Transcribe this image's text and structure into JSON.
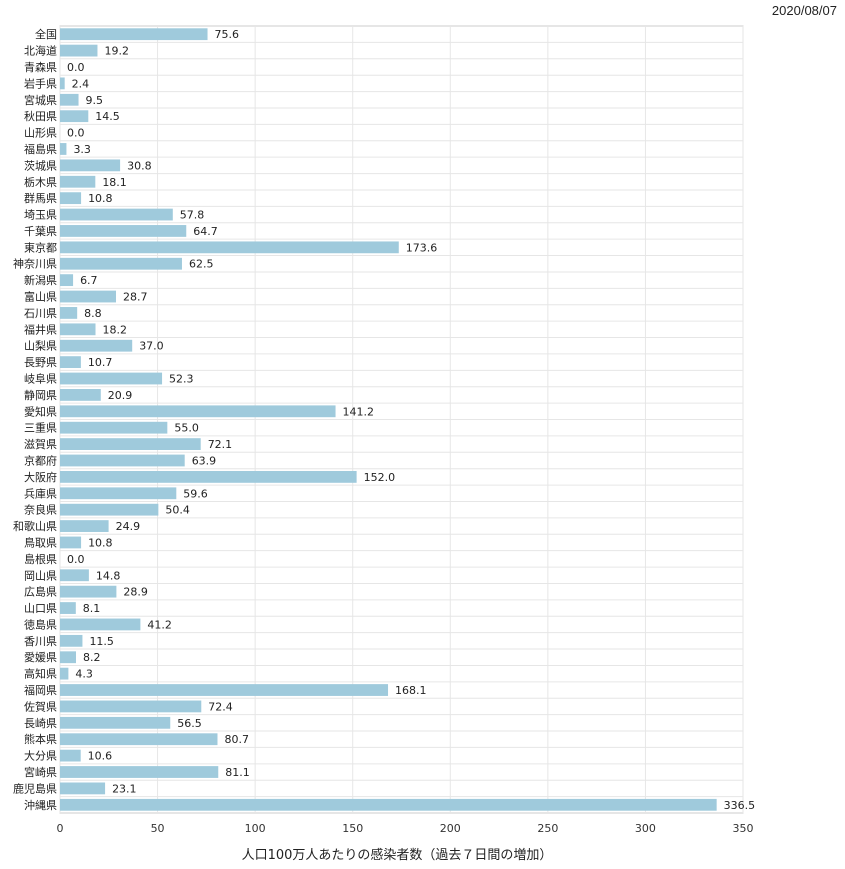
{
  "date": "2020/08/07",
  "chart_data": {
    "type": "bar",
    "orientation": "horizontal",
    "title": "",
    "xlabel": "人口100万人あたりの感染者数（過去７日間の増加）",
    "ylabel": "",
    "xlim": [
      0,
      350
    ],
    "xticks": [
      "0",
      "50",
      "100",
      "150",
      "200",
      "250",
      "300",
      "350"
    ],
    "grid": true,
    "bar_color": "#9fcadc",
    "categories": [
      "全国",
      "北海道",
      "青森県",
      "岩手県",
      "宮城県",
      "秋田県",
      "山形県",
      "福島県",
      "茨城県",
      "栃木県",
      "群馬県",
      "埼玉県",
      "千葉県",
      "東京都",
      "神奈川県",
      "新潟県",
      "富山県",
      "石川県",
      "福井県",
      "山梨県",
      "長野県",
      "岐阜県",
      "静岡県",
      "愛知県",
      "三重県",
      "滋賀県",
      "京都府",
      "大阪府",
      "兵庫県",
      "奈良県",
      "和歌山県",
      "鳥取県",
      "島根県",
      "岡山県",
      "広島県",
      "山口県",
      "徳島県",
      "香川県",
      "愛媛県",
      "高知県",
      "福岡県",
      "佐賀県",
      "長崎県",
      "熊本県",
      "大分県",
      "宮崎県",
      "鹿児島県",
      "沖縄県"
    ],
    "values": [
      75.6,
      19.2,
      0.0,
      2.4,
      9.5,
      14.5,
      0.0,
      3.3,
      30.8,
      18.1,
      10.8,
      57.8,
      64.7,
      173.6,
      62.5,
      6.7,
      28.7,
      8.8,
      18.2,
      37.0,
      10.7,
      52.3,
      20.9,
      141.2,
      55.0,
      72.1,
      63.9,
      152.0,
      59.6,
      50.4,
      24.9,
      10.8,
      0.0,
      14.8,
      28.9,
      8.1,
      41.2,
      11.5,
      8.2,
      4.3,
      168.1,
      72.4,
      56.5,
      80.7,
      10.6,
      81.1,
      23.1,
      336.5
    ],
    "value_labels": [
      "75.6",
      "19.2",
      "0.0",
      "2.4",
      "9.5",
      "14.5",
      "0.0",
      "3.3",
      "30.8",
      "18.1",
      "10.8",
      "57.8",
      "64.7",
      "173.6",
      "62.5",
      "6.7",
      "28.7",
      "8.8",
      "18.2",
      "37.0",
      "10.7",
      "52.3",
      "20.9",
      "141.2",
      "55.0",
      "72.1",
      "63.9",
      "152.0",
      "59.6",
      "50.4",
      "24.9",
      "10.8",
      "0.0",
      "14.8",
      "28.9",
      "8.1",
      "41.2",
      "11.5",
      "8.2",
      "4.3",
      "168.1",
      "72.4",
      "56.5",
      "80.7",
      "10.6",
      "81.1",
      "23.1",
      "336.5"
    ]
  }
}
